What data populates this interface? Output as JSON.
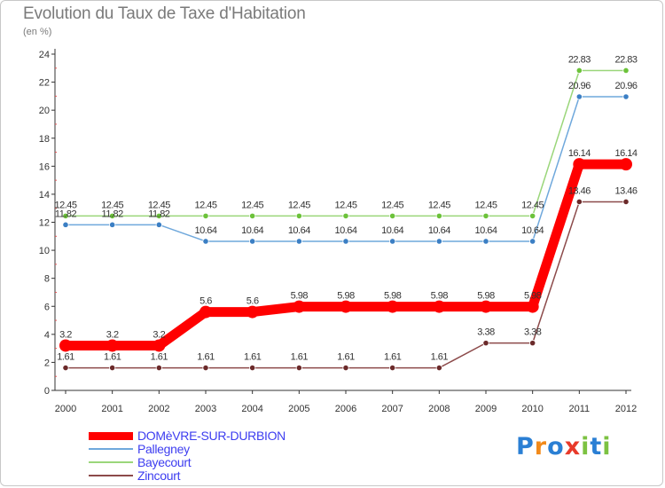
{
  "title": "Evolution du Taux de Taxe d'Habitation",
  "subtitle": "(en %)",
  "logo": {
    "text": "Proxiti",
    "letters": [
      "P",
      "r",
      "o",
      "x",
      "i",
      "t",
      "i"
    ],
    "colors": [
      "#2a7fd4",
      "#f28a1a",
      "#2a7fd4",
      "#e83a2a",
      "#7cc242",
      "#2a7fd4",
      "#7cc242"
    ]
  },
  "chart_data": {
    "type": "line",
    "title": "Evolution du Taux de Taxe d'Habitation",
    "subtitle": "(en %)",
    "xlabel": "",
    "ylabel": "",
    "x": [
      "2000",
      "2001",
      "2002",
      "2003",
      "2004",
      "2005",
      "2006",
      "2007",
      "2008",
      "2009",
      "2010",
      "2011",
      "2012"
    ],
    "ylim": [
      0,
      24
    ],
    "yticks": [
      0,
      2,
      4,
      6,
      8,
      10,
      12,
      14,
      16,
      18,
      20,
      22,
      24
    ],
    "grid": false,
    "legend_position": "bottom-left",
    "series": [
      {
        "name": "DOMèVRE-SUR-DURBION",
        "color": "#ff0000",
        "marker_color": "#ff0000",
        "width": "thick",
        "values": [
          3.2,
          3.2,
          3.2,
          5.6,
          5.6,
          5.98,
          5.98,
          5.98,
          5.98,
          5.98,
          5.98,
          16.14,
          16.14
        ],
        "labels": [
          "3.2",
          "3.2",
          "3.2",
          "5.6",
          "5.6",
          "5.98",
          "5.98",
          "5.98",
          "5.98",
          "5.98",
          "5.98",
          "16.14",
          "16.14"
        ]
      },
      {
        "name": "Pallegney",
        "color": "#6fa8dc",
        "marker_color": "#3b7fc4",
        "width": "thin",
        "values": [
          11.82,
          11.82,
          11.82,
          10.64,
          10.64,
          10.64,
          10.64,
          10.64,
          10.64,
          10.64,
          10.64,
          20.96,
          20.96
        ],
        "labels": [
          "11.82",
          "11.82",
          "11.82",
          "10.64",
          "10.64",
          "10.64",
          "10.64",
          "10.64",
          "10.64",
          "10.64",
          "10.64",
          "20.96",
          "20.96"
        ]
      },
      {
        "name": "Bayecourt",
        "color": "#9ad67a",
        "marker_color": "#6cc23a",
        "width": "thin",
        "values": [
          12.45,
          12.45,
          12.45,
          12.45,
          12.45,
          12.45,
          12.45,
          12.45,
          12.45,
          12.45,
          12.45,
          22.83,
          22.83
        ],
        "labels": [
          "12.45",
          "12.45",
          "12.45",
          "12.45",
          "12.45",
          "12.45",
          "12.45",
          "12.45",
          "12.45",
          "12.45",
          "12.45",
          "22.83",
          "22.83"
        ]
      },
      {
        "name": "Zincourt",
        "color": "#8c4a4a",
        "marker_color": "#6b2a2a",
        "width": "thin",
        "values": [
          1.61,
          1.61,
          1.61,
          1.61,
          1.61,
          1.61,
          1.61,
          1.61,
          1.61,
          3.38,
          3.38,
          13.46,
          13.46
        ],
        "labels": [
          "1.61",
          "1.61",
          "1.61",
          "1.61",
          "1.61",
          "1.61",
          "1.61",
          "1.61",
          "1.61",
          "3.38",
          "3.38",
          "13.46",
          "13.46"
        ]
      }
    ]
  }
}
